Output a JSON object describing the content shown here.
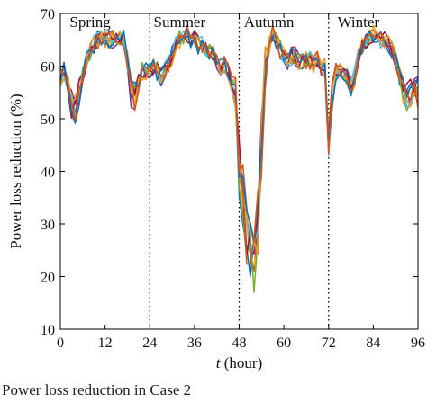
{
  "caption": "Power loss reduction in Case 2",
  "chart_data": {
    "type": "line",
    "title": "",
    "xlabel_italic": "t",
    "xlabel_rest": " (hour)",
    "ylabel": "Power loss reduction (%)",
    "xlim": [
      0,
      96
    ],
    "ylim": [
      10,
      70
    ],
    "xticks": [
      0,
      12,
      24,
      36,
      48,
      60,
      72,
      84,
      96
    ],
    "yticks": [
      10,
      20,
      30,
      40,
      50,
      60,
      70
    ],
    "season_labels": [
      {
        "text": "Spring",
        "x": 8
      },
      {
        "text": "Summer",
        "x": 32
      },
      {
        "text": "Autumn",
        "x": 56
      },
      {
        "text": "Winter",
        "x": 80
      }
    ],
    "season_dividers": [
      24,
      48,
      72
    ],
    "grid": false,
    "series_colors": [
      "#0072BD",
      "#D95319",
      "#EDB120",
      "#7E2F8E",
      "#77AC30",
      "#4DBEEE",
      "#A2142F",
      "#E69A2E"
    ],
    "series_count": 10,
    "base_profile": {
      "x": [
        0,
        1,
        2,
        3,
        4,
        5,
        6,
        7,
        8,
        9,
        10,
        11,
        12,
        13,
        14,
        15,
        16,
        17,
        18,
        19,
        20,
        21,
        22,
        23,
        24,
        25,
        26,
        27,
        28,
        29,
        30,
        31,
        32,
        33,
        34,
        35,
        36,
        37,
        38,
        39,
        40,
        41,
        42,
        43,
        44,
        45,
        46,
        47,
        48,
        49,
        50,
        51,
        52,
        53,
        54,
        55,
        56,
        57,
        58,
        59,
        60,
        61,
        62,
        63,
        64,
        65,
        66,
        67,
        68,
        69,
        70,
        71,
        72,
        73,
        74,
        75,
        76,
        77,
        78,
        79,
        80,
        81,
        82,
        83,
        84,
        85,
        86,
        87,
        88,
        89,
        90,
        91,
        92,
        93,
        94,
        95,
        96
      ],
      "y": [
        58,
        59,
        57,
        53,
        52,
        55,
        58,
        61,
        63,
        64,
        65,
        65,
        65,
        65,
        65,
        65,
        65,
        65,
        61,
        55,
        54,
        57,
        59,
        59,
        59,
        60,
        59,
        58,
        59,
        60,
        62,
        64,
        65,
        66,
        66,
        65,
        65,
        64,
        64,
        63,
        63,
        62,
        61,
        60,
        60,
        59,
        57,
        55,
        40,
        35,
        28,
        25,
        23,
        30,
        45,
        58,
        64,
        66,
        65,
        63,
        62,
        61,
        62,
        62,
        61,
        61,
        61,
        61,
        60,
        61,
        60,
        60,
        46,
        55,
        59,
        59,
        59,
        58,
        56,
        58,
        62,
        64,
        65,
        66,
        66,
        65,
        65,
        65,
        64,
        63,
        61,
        58,
        55,
        54,
        55,
        56,
        55
      ]
    }
  }
}
